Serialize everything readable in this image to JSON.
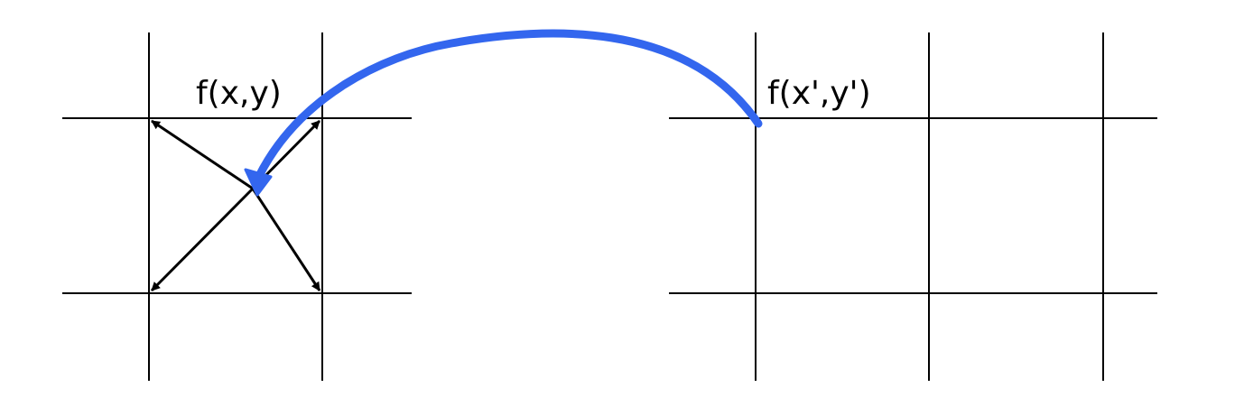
{
  "labels": {
    "source": "f(x,y)",
    "target": "f(x',y')"
  },
  "colors": {
    "grid": "#000000",
    "arrows": "#000000",
    "mapping_arrow": "#3366ee",
    "background": "#ffffff"
  }
}
